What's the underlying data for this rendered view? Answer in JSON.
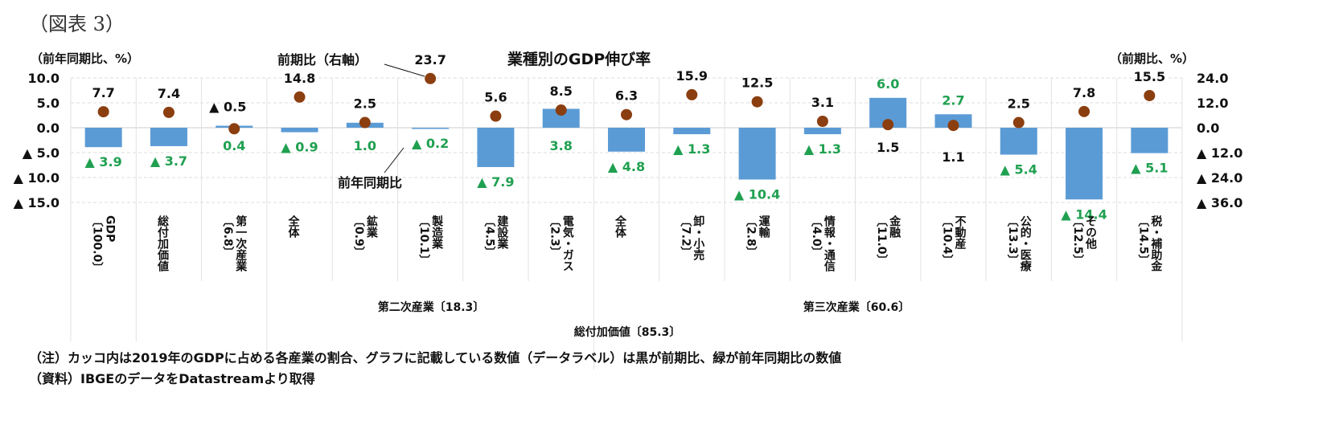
{
  "figure_label": "（図表 3）",
  "chart_data": {
    "type": "bar+scatter",
    "title": "業種別のGDP伸び率",
    "ylabel_left": "（前年同期比、%）",
    "ylabel_right": "（前期比、%）",
    "ylim_left": [
      -15,
      10
    ],
    "yticks_left": [
      10,
      5,
      0,
      -5,
      -10,
      -15
    ],
    "ylim_right": [
      -36,
      24
    ],
    "yticks_right": [
      24,
      12,
      0,
      -12,
      -24,
      -36
    ],
    "negative_marker": "▲",
    "grid": true,
    "categories": [
      {
        "name": "GDP",
        "share": "〔100.0〕"
      },
      {
        "name": "総付加価値",
        "share": ""
      },
      {
        "name": "第一次産業",
        "share": "〔6.8〕"
      },
      {
        "name": "全体",
        "share": ""
      },
      {
        "name": "鉱業",
        "share": "〔0.9〕"
      },
      {
        "name": "製造業",
        "share": "〔10.1〕"
      },
      {
        "name": "建設業",
        "share": "〔4.5〕"
      },
      {
        "name": "電気・ガス",
        "share": "〔2.3〕"
      },
      {
        "name": "全体",
        "share": ""
      },
      {
        "name": "卸・小売",
        "share": "〔7.2〕"
      },
      {
        "name": "運輸",
        "share": "〔2.8〕"
      },
      {
        "name": "情報・通信",
        "share": "〔4.0〕"
      },
      {
        "name": "金融",
        "share": "〔11.0〕"
      },
      {
        "name": "不動産",
        "share": "〔10.4〕"
      },
      {
        "name": "公的・医療",
        "share": "〔13.3〕"
      },
      {
        "name": "その他",
        "share": "〔12.5〕"
      },
      {
        "name": "税・補助金",
        "share": "〔14.5〕"
      }
    ],
    "groups": [
      {
        "label": "第二次産業〔18.3〕"
      },
      {
        "label": "第三次産業〔60.6〕"
      },
      {
        "label": "総付加価値〔85.3〕"
      }
    ],
    "series": [
      {
        "name": "前年同期比",
        "type": "bar",
        "axis": "left",
        "color": "#5b9bd5",
        "label_color": "#1fa050",
        "values": [
          -3.9,
          -3.7,
          0.4,
          -0.9,
          1.0,
          -0.2,
          -7.9,
          3.8,
          -4.8,
          -1.3,
          -10.4,
          -1.3,
          6.0,
          2.7,
          -5.4,
          -14.4,
          -5.1
        ]
      },
      {
        "name": "前期比（右軸）",
        "type": "scatter",
        "axis": "right",
        "color": "#8b3e0f",
        "label_color": "#111111",
        "values": [
          7.7,
          7.4,
          -0.5,
          14.8,
          2.5,
          23.7,
          5.6,
          8.5,
          6.3,
          15.9,
          12.5,
          3.1,
          1.5,
          1.1,
          2.5,
          7.8,
          15.5
        ]
      }
    ]
  },
  "notes": [
    "（注）カッコ内は2019年のGDPに占める各産業の割合、グラフに記載している数値（データラベル）は黒が前期比、緑が前年同期比の数値",
    "（資料）IBGEのデータをDatastreamより取得"
  ]
}
